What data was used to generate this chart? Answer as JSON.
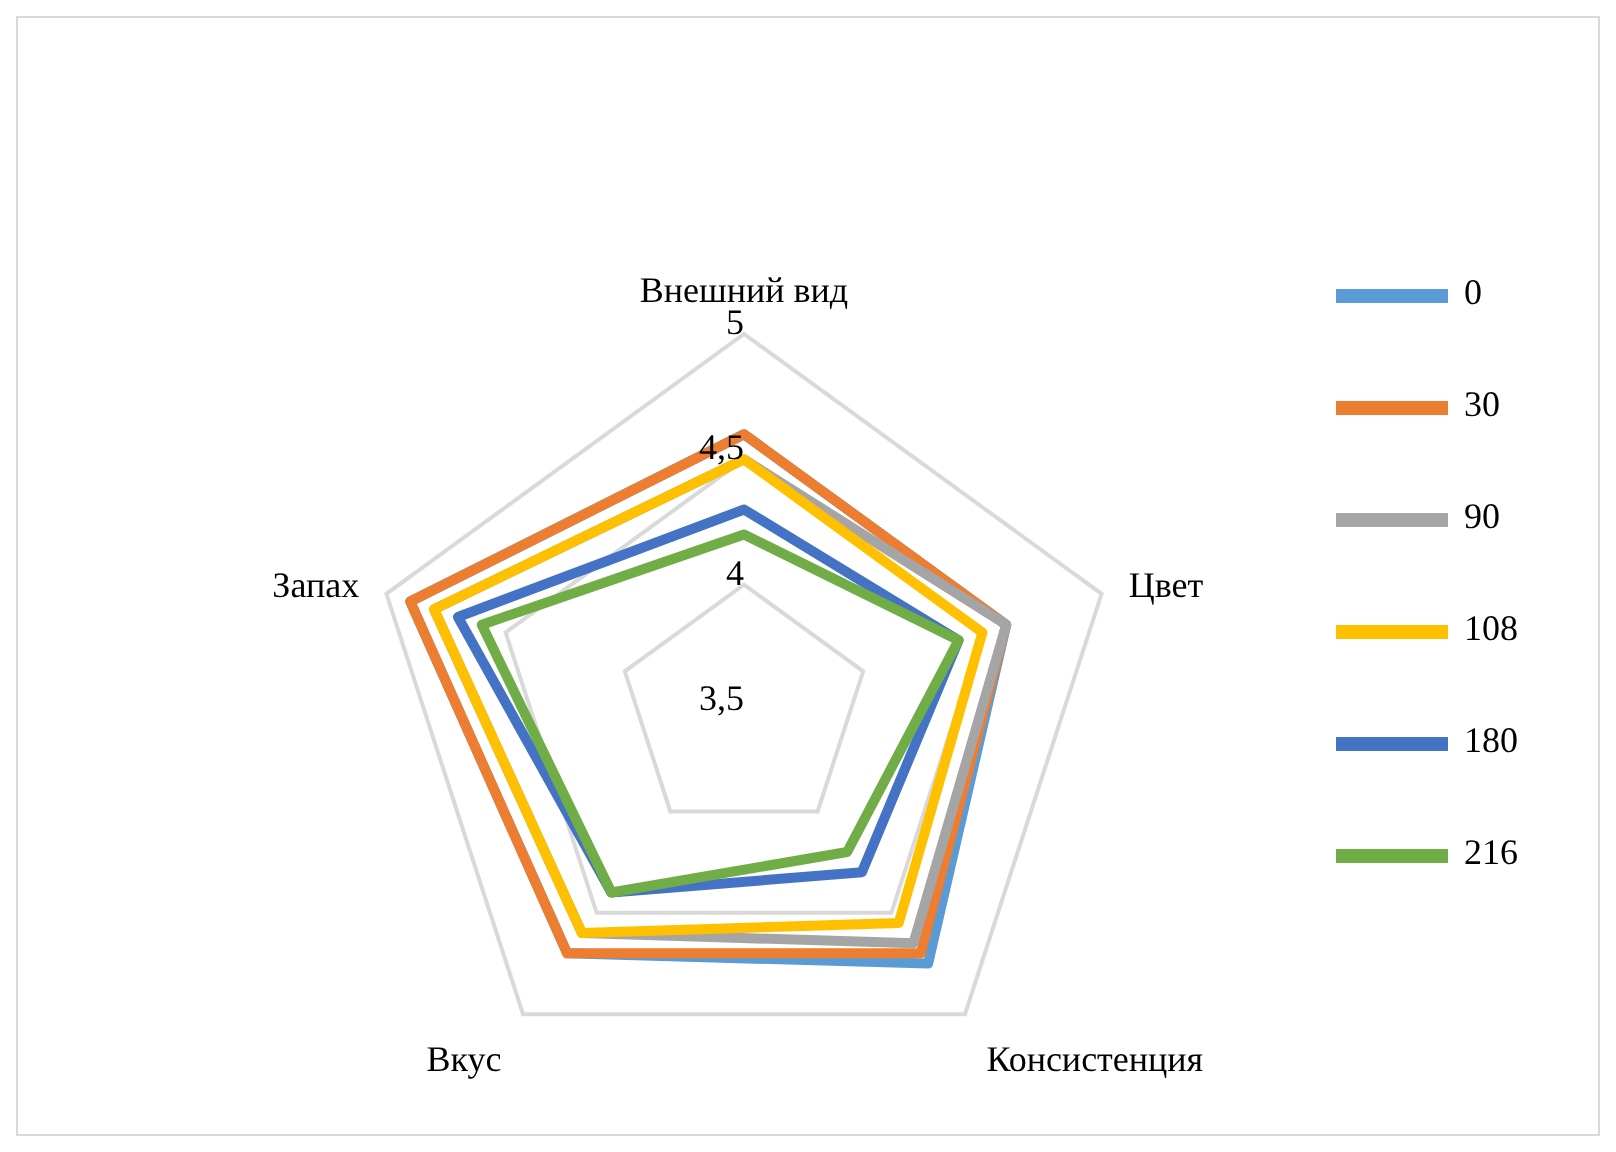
{
  "chart_data": {
    "type": "radar",
    "categories": [
      "Внешний вид",
      "Цвет",
      "Консистенция",
      "Вкус",
      "Запах"
    ],
    "series": [
      {
        "name": "0",
        "color": "#5b9bd5",
        "values": [
          4.6,
          4.6,
          4.75,
          4.7,
          4.9
        ]
      },
      {
        "name": "30",
        "color": "#ed7d31",
        "values": [
          4.6,
          4.6,
          4.7,
          4.7,
          4.9
        ]
      },
      {
        "name": "90",
        "color": "#a5a5a5",
        "values": [
          4.5,
          4.6,
          4.65,
          4.6,
          4.8
        ]
      },
      {
        "name": "108",
        "color": "#ffc000",
        "values": [
          4.5,
          4.5,
          4.55,
          4.6,
          4.8
        ]
      },
      {
        "name": "180",
        "color": "#4472c4",
        "values": [
          4.3,
          4.4,
          4.3,
          4.4,
          4.7
        ]
      },
      {
        "name": "216",
        "color": "#70ad47",
        "values": [
          4.2,
          4.4,
          4.2,
          4.4,
          4.6
        ]
      }
    ],
    "ylim": [
      3.5,
      5
    ],
    "yticks": [
      {
        "value": 3.5,
        "label": "3,5"
      },
      {
        "value": 4,
        "label": "4"
      },
      {
        "value": 4.5,
        "label": "4,5"
      },
      {
        "value": 5,
        "label": "5"
      }
    ],
    "grid": true,
    "legend": "right"
  }
}
